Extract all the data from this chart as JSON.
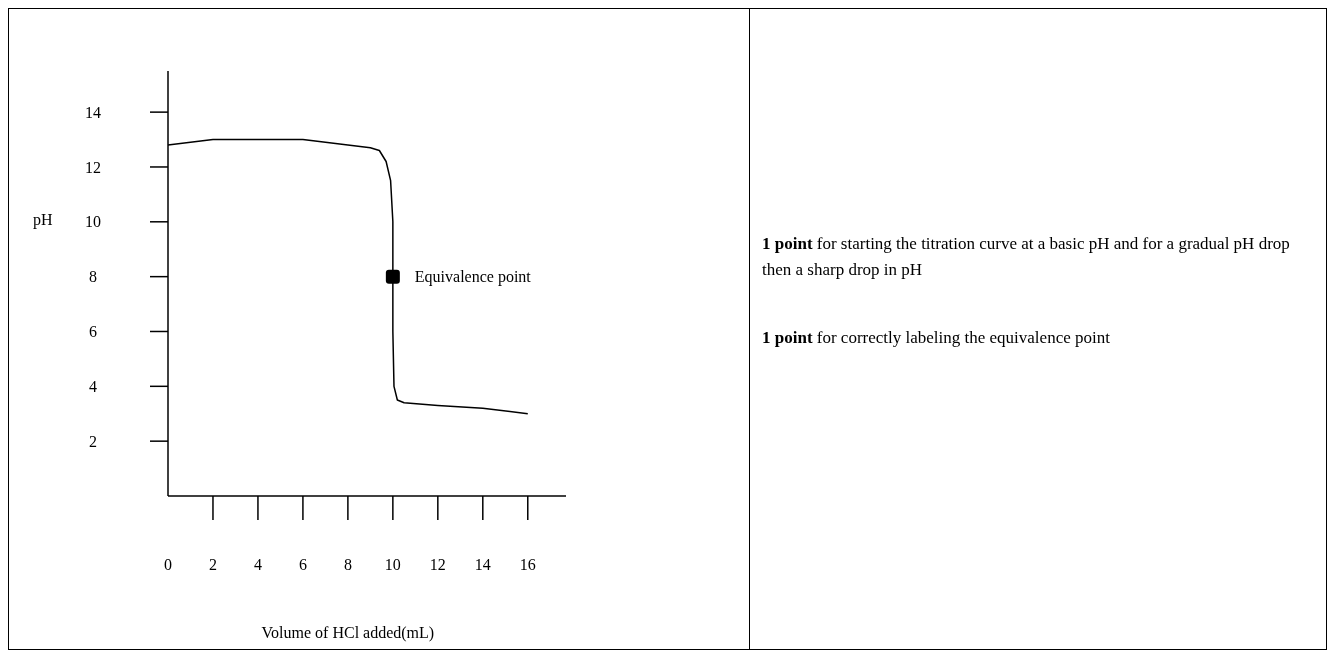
{
  "chart_data": {
    "type": "line",
    "xlabel": "Volume of HCl added(mL)",
    "ylabel": "pH",
    "xlim": [
      0,
      17.7
    ],
    "xticks": [
      0,
      2,
      4,
      6,
      8,
      10,
      12,
      14,
      16
    ],
    "ylim": [
      0,
      15.5
    ],
    "yticks": [
      2,
      4,
      6,
      8,
      10,
      12,
      14
    ],
    "grid": false,
    "series": [
      {
        "color": "#000000",
        "x": [
          0,
          1,
          2,
          4,
          6,
          7,
          8,
          9,
          9.4,
          9.7,
          9.9,
          10,
          10,
          10,
          10.05,
          10.2,
          10.5,
          12,
          14,
          16
        ],
        "values": [
          12.8,
          12.9,
          13,
          13,
          13,
          12.9,
          12.8,
          12.7,
          12.6,
          12.2,
          11.5,
          10,
          8,
          6,
          4,
          3.5,
          3.4,
          3.3,
          3.2,
          3.0
        ]
      },
      {
        "type": "scatter",
        "color": "#000000",
        "marker": "square",
        "x": [
          10
        ],
        "values": [
          8
        ]
      }
    ],
    "annotations": [
      {
        "text": "Equivalence point",
        "x": 10,
        "y": 8
      },
      "1 point for starting the titration curve at a basic pH and for a gradual pH drop then a sharp drop in pH",
      "1 point for correctly labeling the equivalence point"
    ]
  }
}
